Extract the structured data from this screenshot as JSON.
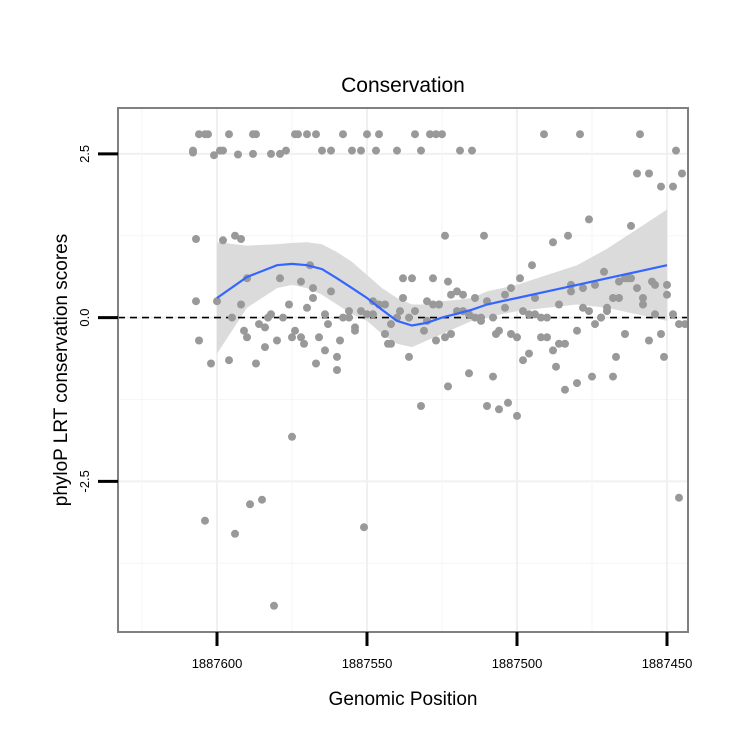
{
  "chart_data": {
    "type": "scatter",
    "title": "Conservation",
    "xlabel": "Genomic Position",
    "ylabel": "phyloP LRT conservation scores",
    "x_reversed": true,
    "xlim": [
      1887633,
      1887443
    ],
    "ylim": [
      -4.8,
      3.2
    ],
    "x_ticks": [
      {
        "value": 1887600,
        "label": "1887600"
      },
      {
        "value": 1887550,
        "label": "1887550"
      },
      {
        "value": 1887500,
        "label": "1887500"
      },
      {
        "value": 1887450,
        "label": "1887450"
      }
    ],
    "x_minor_ticks": [
      1887625,
      1887575,
      1887525,
      1887475
    ],
    "y_ticks": [
      {
        "value": 2.5,
        "label": "2.5"
      },
      {
        "value": 0.0,
        "label": "0.0"
      },
      {
        "value": -2.5,
        "label": "-2.5"
      }
    ],
    "y_minor_ticks": [
      1.25,
      -1.25,
      -3.75
    ],
    "grid": true,
    "reference_line": {
      "y": 0,
      "style": "dashed"
    },
    "colors": {
      "points": "#999999",
      "smooth": "#3366ff",
      "band": "#d9d9d9",
      "frame": "#808080"
    },
    "points": {
      "x": [
        1887608,
        1887607,
        1887606,
        1887604,
        1887601,
        1887598,
        1887596,
        1887594,
        1887593,
        1887592,
        1887590,
        1887589,
        1887588,
        1887587,
        1887585,
        1887584,
        1887582,
        1887581,
        1887579,
        1887577,
        1887575,
        1887574,
        1887573,
        1887572,
        1887570,
        1887569,
        1887568,
        1887567,
        1887565,
        1887564,
        1887562,
        1887560,
        1887558,
        1887556,
        1887554,
        1887552,
        1887550,
        1887548,
        1887546,
        1887544,
        1887542,
        1887540,
        1887538,
        1887536,
        1887534,
        1887532,
        1887530,
        1887529,
        1887528,
        1887527,
        1887526,
        1887525,
        1887524,
        1887523,
        1887522,
        1887520,
        1887518,
        1887516,
        1887514,
        1887512,
        1887510,
        1887508,
        1887506,
        1887504,
        1887502,
        1887500,
        1887498,
        1887496,
        1887494,
        1887492,
        1887490,
        1887488,
        1887486,
        1887484,
        1887482,
        1887480,
        1887478,
        1887476,
        1887474,
        1887472,
        1887470,
        1887468,
        1887466,
        1887464,
        1887462,
        1887460,
        1887458,
        1887456,
        1887454,
        1887452,
        1887450,
        1887448,
        1887446,
        1887444,
        1887608,
        1887604,
        1887600,
        1887596,
        1887592,
        1887588,
        1887584,
        1887580,
        1887576,
        1887572,
        1887568,
        1887564,
        1887560,
        1887556,
        1887552,
        1887548,
        1887544,
        1887540,
        1887536,
        1887532,
        1887528,
        1887524,
        1887520,
        1887516,
        1887512,
        1887508,
        1887504,
        1887500,
        1887496,
        1887492,
        1887488,
        1887484,
        1887480,
        1887476,
        1887472,
        1887468,
        1887464,
        1887460,
        1887456,
        1887452,
        1887448,
        1887445,
        1887607,
        1887603,
        1887599,
        1887595,
        1887591,
        1887587,
        1887583,
        1887579,
        1887575,
        1887571,
        1887567,
        1887563,
        1887559,
        1887555,
        1887551,
        1887547,
        1887543,
        1887539,
        1887535,
        1887531,
        1887527,
        1887523,
        1887519,
        1887515,
        1887511,
        1887507,
        1887503,
        1887499,
        1887495,
        1887491,
        1887487,
        1887483,
        1887479,
        1887475,
        1887471,
        1887467,
        1887463,
        1887459,
        1887455,
        1887451,
        1887447,
        1887446,
        1887606,
        1887602,
        1887598,
        1887594,
        1887590,
        1887586,
        1887582,
        1887578,
        1887574,
        1887570,
        1887566,
        1887562,
        1887558,
        1887554,
        1887550,
        1887546,
        1887542,
        1887538,
        1887534,
        1887530,
        1887526,
        1887522,
        1887518,
        1887514,
        1887510,
        1887506,
        1887502,
        1887498,
        1887494,
        1887490,
        1887486,
        1887482,
        1887478,
        1887474,
        1887470,
        1887466,
        1887462,
        1887458,
        1887454,
        1887450
      ],
      "y": [
        2.52,
        1.2,
        -0.35,
        -3.1,
        2.48,
        1.18,
        -0.65,
        -3.3,
        2.49,
        1.2,
        -0.3,
        -2.85,
        2.5,
        -0.7,
        -2.78,
        -0.45,
        2.5,
        -4.4,
        2.5,
        2.55,
        -1.82,
        2.8,
        2.8,
        0.55,
        2.8,
        0.8,
        0.3,
        -0.7,
        2.55,
        -0.5,
        2.55,
        -0.6,
        2.8,
        0.0,
        -0.2,
        2.55,
        2.8,
        0.25,
        2.8,
        0.2,
        -0.4,
        2.55,
        0.6,
        -0.6,
        2.8,
        2.55,
        0.25,
        2.8,
        0.2,
        2.8,
        0.2,
        2.8,
        1.25,
        0.55,
        -0.25,
        0.4,
        0.35,
        0.05,
        0.3,
        -0.05,
        -1.35,
        0.0,
        -1.4,
        0.15,
        -0.25,
        -0.3,
        -0.65,
        -0.55,
        0.05,
        -0.3,
        -0.3,
        1.15,
        -0.4,
        -0.4,
        0.5,
        -0.2,
        0.45,
        1.5,
        -0.1,
        0.0,
        0.15,
        0.3,
        0.55,
        0.6,
        1.4,
        0.45,
        0.3,
        -0.35,
        0.05,
        -0.25,
        0.5,
        0.05,
        -0.1,
        -0.1,
        2.55,
        2.8,
        0.25,
        2.8,
        0.2,
        2.8,
        -0.15,
        -0.35,
        0.2,
        -0.3,
        0.45,
        0.05,
        -0.8,
        0.1,
        0.1,
        0.05,
        -0.25,
        0.0,
        0.0,
        -1.35,
        0.6,
        -0.3,
        0.1,
        -0.85,
        0.0,
        -0.9,
        0.35,
        -1.5,
        0.05,
        0.0,
        -0.5,
        -1.1,
        -1.0,
        0.1,
        0.0,
        -0.9,
        -0.25,
        2.2,
        2.2,
        2.0,
        2.0,
        2.2,
        0.25,
        2.8,
        2.55,
        0.0,
        -0.2,
        2.8,
        0.0,
        0.6,
        -0.3,
        -0.4,
        2.8,
        -0.1,
        -0.35,
        2.55,
        -3.2,
        2.55,
        -0.4,
        0.1,
        0.6,
        -0.2,
        -0.35,
        -1.05,
        2.55,
        2.55,
        1.25,
        -0.25,
        -1.3,
        0.6,
        0.8,
        2.8,
        -0.75,
        1.25,
        2.8,
        -0.9,
        0.7,
        -0.6,
        0.6,
        2.8,
        0.55,
        -0.6,
        2.55,
        -2.75,
        2.8,
        -0.7,
        2.55,
        1.25,
        0.6,
        -0.1,
        0.05,
        0.0,
        -0.2,
        0.15,
        -0.3,
        0.4,
        0.0,
        -0.15,
        0.05,
        0.2,
        -0.1,
        0.3,
        0.1,
        -0.05,
        0.2,
        0.35,
        0.1,
        0.0,
        0.25,
        -0.2,
        0.45,
        0.1,
        0.3,
        0.0,
        0.2,
        0.4,
        0.15,
        0.5,
        0.1,
        0.3,
        0.6,
        0.2,
        0.5,
        0.35
      ]
    },
    "smooth": {
      "x": [
        1887600,
        1887590,
        1887580,
        1887575,
        1887570,
        1887565,
        1887560,
        1887555,
        1887550,
        1887545,
        1887540,
        1887535,
        1887530,
        1887525,
        1887520,
        1887515,
        1887510,
        1887505,
        1887500,
        1887490,
        1887480,
        1887470,
        1887460,
        1887450
      ],
      "y": [
        0.3,
        0.62,
        0.8,
        0.82,
        0.8,
        0.74,
        0.6,
        0.45,
        0.3,
        0.12,
        -0.05,
        -0.12,
        -0.08,
        0.0,
        0.06,
        0.12,
        0.2,
        0.25,
        0.3,
        0.4,
        0.5,
        0.6,
        0.7,
        0.8
      ],
      "lower": [
        -0.55,
        0.15,
        0.45,
        0.5,
        0.45,
        0.35,
        0.2,
        0.05,
        -0.05,
        -0.25,
        -0.4,
        -0.45,
        -0.35,
        -0.25,
        -0.15,
        -0.05,
        0.0,
        0.05,
        0.1,
        0.15,
        0.2,
        0.15,
        0.05,
        -0.05
      ],
      "upper": [
        1.15,
        1.1,
        1.12,
        1.14,
        1.15,
        1.12,
        1.0,
        0.85,
        0.65,
        0.45,
        0.3,
        0.2,
        0.2,
        0.25,
        0.27,
        0.3,
        0.4,
        0.45,
        0.5,
        0.65,
        0.8,
        1.05,
        1.35,
        1.65
      ]
    }
  }
}
